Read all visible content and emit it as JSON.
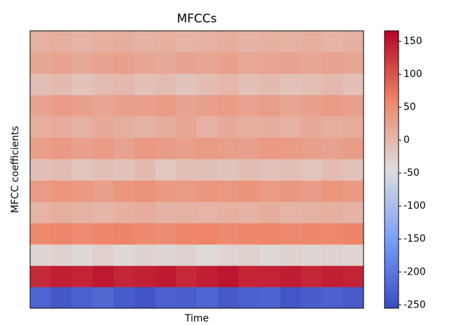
{
  "chart_data": {
    "type": "heatmap",
    "title": "MFCCs",
    "x_label": "Time",
    "y_label": "MFCC coefficients",
    "colormap": "coolwarm",
    "clim": [
      -255,
      166
    ],
    "cbar_ticks": [
      -250,
      -200,
      -150,
      -100,
      -50,
      0,
      50,
      100,
      150
    ],
    "z": [
      [
        -225,
        -240,
        -230,
        -220,
        -235,
        -245,
        -228,
        -232,
        -222,
        -238,
        -230,
        -226,
        -242,
        -234,
        -228,
        -236
      ],
      [
        135,
        145,
        140,
        150,
        138,
        142,
        148,
        136,
        144,
        152,
        139,
        141,
        146,
        137,
        143,
        140
      ],
      [
        -35,
        -30,
        -40,
        -28,
        -38,
        -32,
        -36,
        -30,
        -42,
        -34,
        -30,
        -38,
        -33,
        -36,
        -31,
        -35
      ],
      [
        55,
        60,
        52,
        58,
        62,
        56,
        50,
        59,
        61,
        54,
        57,
        60,
        53,
        58,
        55,
        62
      ],
      [
        5,
        12,
        8,
        3,
        10,
        15,
        6,
        9,
        4,
        11,
        7,
        13,
        5,
        8,
        10,
        6
      ],
      [
        35,
        42,
        38,
        30,
        40,
        45,
        36,
        33,
        41,
        38,
        44,
        35,
        39,
        32,
        42,
        37
      ],
      [
        -10,
        -5,
        -15,
        -8,
        -12,
        -3,
        -18,
        -7,
        -10,
        -14,
        -6,
        -11,
        -9,
        -16,
        -4,
        -12
      ],
      [
        30,
        36,
        28,
        34,
        25,
        38,
        32,
        29,
        35,
        31,
        27,
        37,
        33,
        30,
        26,
        34
      ],
      [
        10,
        15,
        8,
        18,
        12,
        6,
        14,
        20,
        9,
        16,
        11,
        13,
        7,
        17,
        10,
        15
      ],
      [
        25,
        32,
        28,
        22,
        30,
        27,
        35,
        24,
        29,
        33,
        26,
        31,
        23,
        28,
        34,
        27
      ],
      [
        -8,
        -2,
        -12,
        -5,
        0,
        -10,
        -4,
        -14,
        -6,
        2,
        -9,
        -3,
        -11,
        -7,
        -1,
        -10
      ],
      [
        20,
        26,
        18,
        24,
        28,
        22,
        17,
        25,
        21,
        27,
        19,
        23,
        26,
        20,
        24,
        22
      ],
      [
        8,
        12,
        5,
        10,
        14,
        7,
        11,
        4,
        9,
        13,
        6,
        10,
        8,
        12,
        5,
        11
      ]
    ]
  }
}
